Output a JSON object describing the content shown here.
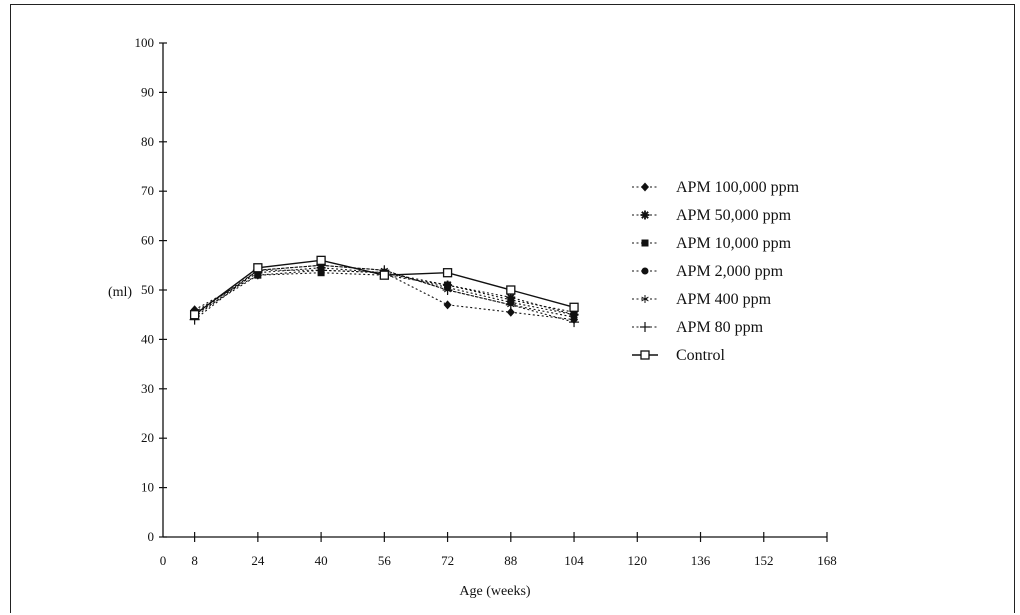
{
  "chart_data": {
    "type": "line",
    "title": "",
    "xlabel": "Age (weeks)",
    "ylabel": "(ml)",
    "xlim": [
      0,
      168
    ],
    "ylim": [
      0,
      100
    ],
    "xticks": [
      0,
      8,
      24,
      40,
      56,
      72,
      88,
      104,
      120,
      136,
      152,
      168
    ],
    "yticks": [
      0,
      10,
      20,
      30,
      40,
      50,
      60,
      70,
      80,
      90,
      100
    ],
    "legend_position": "right",
    "x": [
      8,
      24,
      40,
      56,
      72,
      88,
      104
    ],
    "series": [
      {
        "name": "APM 100,000 ppm",
        "marker": "diamond",
        "line": "dotted",
        "values": [
          46,
          53,
          54,
          53.5,
          47,
          45.5,
          44
        ]
      },
      {
        "name": "APM 50,000 ppm",
        "marker": "asterisk",
        "line": "dotted",
        "values": [
          45.5,
          53.5,
          54.5,
          53.5,
          51,
          48.5,
          45
        ]
      },
      {
        "name": "APM 10,000 ppm",
        "marker": "square-filled",
        "line": "dotted",
        "values": [
          45,
          53,
          53.5,
          53,
          51,
          48,
          45.5
        ]
      },
      {
        "name": "APM 2,000 ppm",
        "marker": "circle",
        "line": "dotted",
        "values": [
          45,
          54,
          54,
          53.5,
          50.5,
          47.5,
          45
        ]
      },
      {
        "name": "APM 400 ppm",
        "marker": "star",
        "line": "dotted",
        "values": [
          44.5,
          54,
          55,
          54,
          50,
          47,
          44.5
        ]
      },
      {
        "name": "APM 80 ppm",
        "marker": "plus",
        "line": "dotted",
        "values": [
          44,
          54,
          55,
          54,
          50,
          47,
          43.5
        ]
      },
      {
        "name": "Control",
        "marker": "square-open",
        "line": "solid",
        "values": [
          45,
          54.5,
          56,
          53,
          53.5,
          50,
          46.5
        ]
      }
    ]
  }
}
